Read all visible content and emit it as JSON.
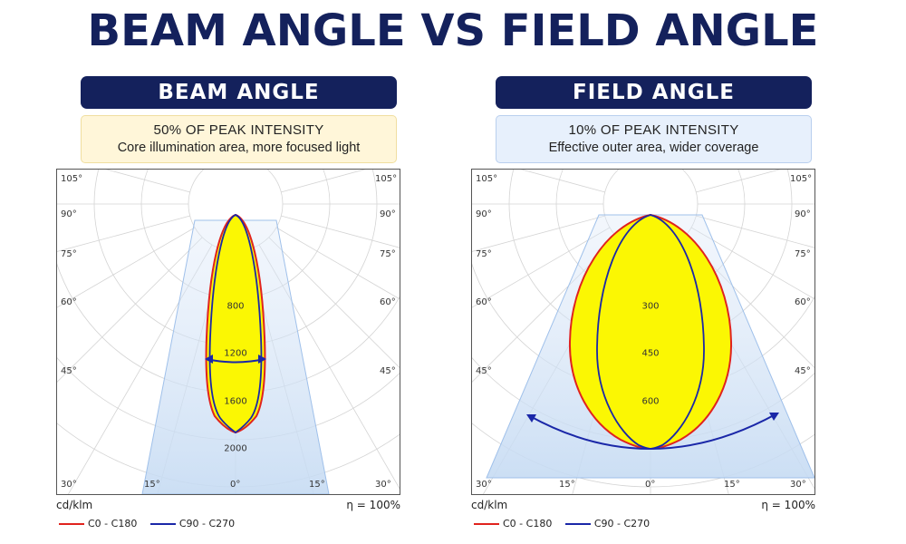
{
  "title": "BEAM ANGLE VS FIELD ANGLE",
  "colors": {
    "navy": "#14215c",
    "c0": "#e0231e",
    "c90": "#1a27a8",
    "fill": "#fbf703"
  },
  "panels": {
    "left": {
      "header": "BEAM ANGLE",
      "subtitle": "50% OF PEAK INTENSITY",
      "description": "Core illumination area, more focused light",
      "radial_labels": [
        "800",
        "1200",
        "1600",
        "2000"
      ],
      "units": "cd/klm",
      "efficiency": "η = 100%"
    },
    "right": {
      "header": "FIELD ANGLE",
      "subtitle": "10% OF PEAK INTENSITY",
      "description": "Effective outer area, wider coverage",
      "radial_labels": [
        "300",
        "450",
        "600"
      ],
      "units": "cd/klm",
      "efficiency": "η = 100%"
    }
  },
  "angle_labels": {
    "a105": "105°",
    "a90": "90°",
    "a75": "75°",
    "a60": "60°",
    "a45": "45°",
    "a30": "30°",
    "a15": "15°",
    "a0": "0°"
  },
  "legend": {
    "c0": "C0 - C180",
    "c90": "C90 - C270"
  }
}
